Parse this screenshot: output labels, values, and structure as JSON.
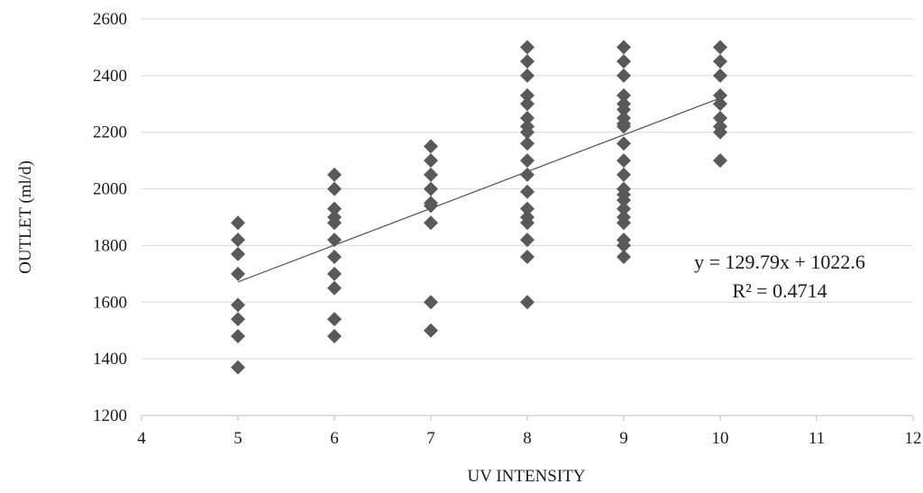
{
  "chart_data": {
    "type": "scatter",
    "title": "",
    "xlabel": "UV INTENSITY",
    "ylabel": "OUTLET (ml/d)",
    "xlim": [
      4,
      12
    ],
    "ylim": [
      1200,
      2600
    ],
    "xticks": [
      4,
      5,
      6,
      7,
      8,
      9,
      10,
      11,
      12
    ],
    "yticks": [
      1200,
      1400,
      1600,
      1800,
      2000,
      2200,
      2400,
      2600
    ],
    "grid": "horizontal",
    "marker": "diamond",
    "marker_color": "#595959",
    "points": [
      {
        "x": 5,
        "y": 1880
      },
      {
        "x": 5,
        "y": 1820
      },
      {
        "x": 5,
        "y": 1770
      },
      {
        "x": 5,
        "y": 1700
      },
      {
        "x": 5,
        "y": 1590
      },
      {
        "x": 5,
        "y": 1540
      },
      {
        "x": 5,
        "y": 1480
      },
      {
        "x": 5,
        "y": 1370
      },
      {
        "x": 6,
        "y": 2050
      },
      {
        "x": 6,
        "y": 2000
      },
      {
        "x": 6,
        "y": 1930
      },
      {
        "x": 6,
        "y": 1900
      },
      {
        "x": 6,
        "y": 1880
      },
      {
        "x": 6,
        "y": 1820
      },
      {
        "x": 6,
        "y": 1760
      },
      {
        "x": 6,
        "y": 1700
      },
      {
        "x": 6,
        "y": 1650
      },
      {
        "x": 6,
        "y": 1540
      },
      {
        "x": 6,
        "y": 1480
      },
      {
        "x": 7,
        "y": 2150
      },
      {
        "x": 7,
        "y": 2100
      },
      {
        "x": 7,
        "y": 2050
      },
      {
        "x": 7,
        "y": 2000
      },
      {
        "x": 7,
        "y": 1950
      },
      {
        "x": 7,
        "y": 1940
      },
      {
        "x": 7,
        "y": 1880
      },
      {
        "x": 7,
        "y": 1600
      },
      {
        "x": 7,
        "y": 1500
      },
      {
        "x": 8,
        "y": 2500
      },
      {
        "x": 8,
        "y": 2450
      },
      {
        "x": 8,
        "y": 2400
      },
      {
        "x": 8,
        "y": 2330
      },
      {
        "x": 8,
        "y": 2300
      },
      {
        "x": 8,
        "y": 2250
      },
      {
        "x": 8,
        "y": 2220
      },
      {
        "x": 8,
        "y": 2200
      },
      {
        "x": 8,
        "y": 2160
      },
      {
        "x": 8,
        "y": 2100
      },
      {
        "x": 8,
        "y": 2050
      },
      {
        "x": 8,
        "y": 1990
      },
      {
        "x": 8,
        "y": 1930
      },
      {
        "x": 8,
        "y": 1900
      },
      {
        "x": 8,
        "y": 1880
      },
      {
        "x": 8,
        "y": 1820
      },
      {
        "x": 8,
        "y": 1760
      },
      {
        "x": 8,
        "y": 1600
      },
      {
        "x": 9,
        "y": 2500
      },
      {
        "x": 9,
        "y": 2450
      },
      {
        "x": 9,
        "y": 2400
      },
      {
        "x": 9,
        "y": 2330
      },
      {
        "x": 9,
        "y": 2300
      },
      {
        "x": 9,
        "y": 2280
      },
      {
        "x": 9,
        "y": 2250
      },
      {
        "x": 9,
        "y": 2230
      },
      {
        "x": 9,
        "y": 2220
      },
      {
        "x": 9,
        "y": 2160
      },
      {
        "x": 9,
        "y": 2100
      },
      {
        "x": 9,
        "y": 2050
      },
      {
        "x": 9,
        "y": 2000
      },
      {
        "x": 9,
        "y": 1980
      },
      {
        "x": 9,
        "y": 1960
      },
      {
        "x": 9,
        "y": 1930
      },
      {
        "x": 9,
        "y": 1900
      },
      {
        "x": 9,
        "y": 1880
      },
      {
        "x": 9,
        "y": 1820
      },
      {
        "x": 9,
        "y": 1800
      },
      {
        "x": 9,
        "y": 1760
      },
      {
        "x": 10,
        "y": 2500
      },
      {
        "x": 10,
        "y": 2450
      },
      {
        "x": 10,
        "y": 2400
      },
      {
        "x": 10,
        "y": 2330
      },
      {
        "x": 10,
        "y": 2300
      },
      {
        "x": 10,
        "y": 2250
      },
      {
        "x": 10,
        "y": 2220
      },
      {
        "x": 10,
        "y": 2200
      },
      {
        "x": 10,
        "y": 2100
      }
    ],
    "trendline": {
      "type": "linear",
      "slope": 129.79,
      "intercept": 1022.6,
      "x_range": [
        5,
        10
      ],
      "color": "#595959",
      "equation_label": "y = 129.79x + 1022.6",
      "r2_label": "R² = 0.4714"
    }
  }
}
